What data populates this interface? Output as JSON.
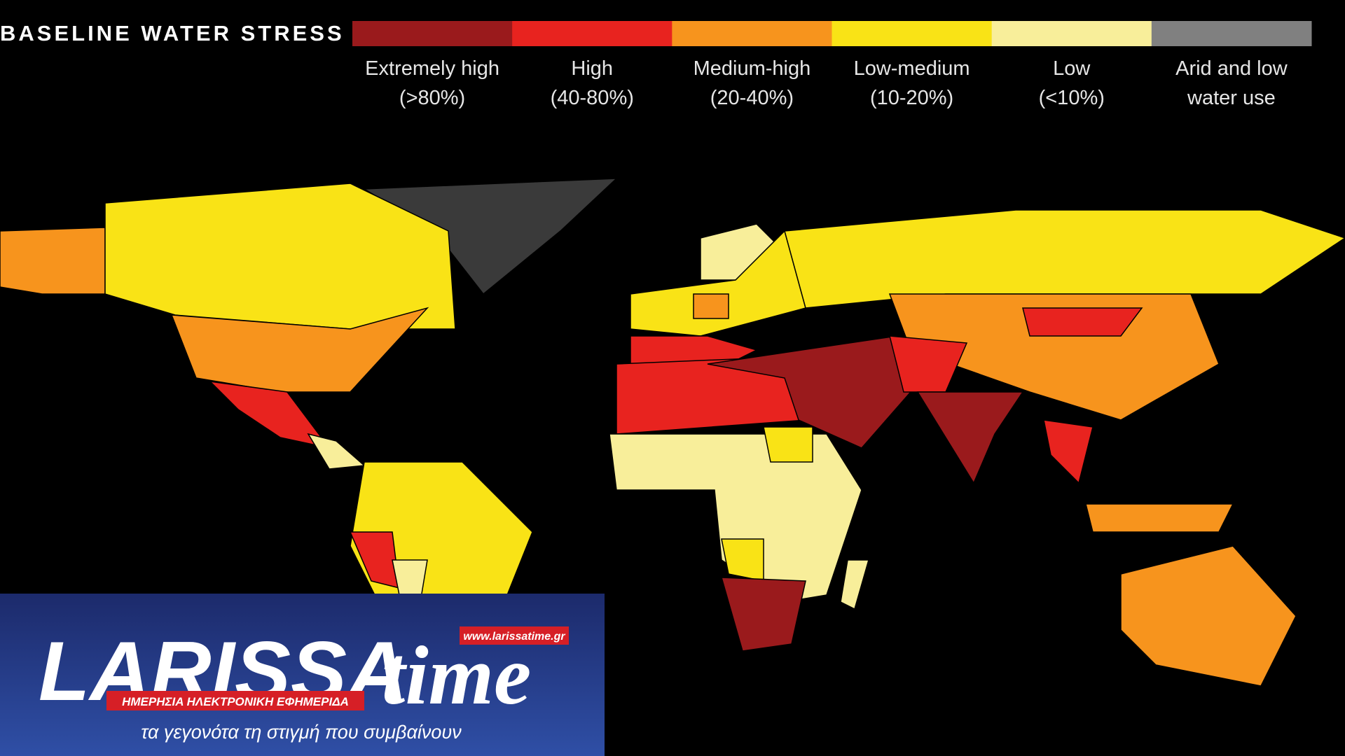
{
  "header": {
    "title": "BASELINE WATER STRESS"
  },
  "legend": [
    {
      "label": [
        "Extremely high",
        "(>80%)"
      ],
      "color": "#9a1a1c"
    },
    {
      "label": [
        "High",
        "(40-80%)"
      ],
      "color": "#e8231f"
    },
    {
      "label": [
        "Medium-high",
        "(20-40%)"
      ],
      "color": "#f7941d"
    },
    {
      "label": [
        "Low-medium",
        "(10-20%)"
      ],
      "color": "#f9e316"
    },
    {
      "label": [
        "Low",
        "(<10%)"
      ],
      "color": "#f8ee9a"
    },
    {
      "label": [
        "Arid and low",
        "water use"
      ],
      "color": "#808080"
    }
  ],
  "logo": {
    "name": "LARISSA",
    "name2": "time",
    "url": "www.larissatime.gr",
    "subtitle": "ΗΜΕΡΗΣΙΑ ΗΛΕΚΤΡΟΝΙΚΗ ΕΦΗΜΕΡΙΔΑ",
    "tagline": "τα γεγονότα τη στιγμή που συμβαίνουν"
  }
}
